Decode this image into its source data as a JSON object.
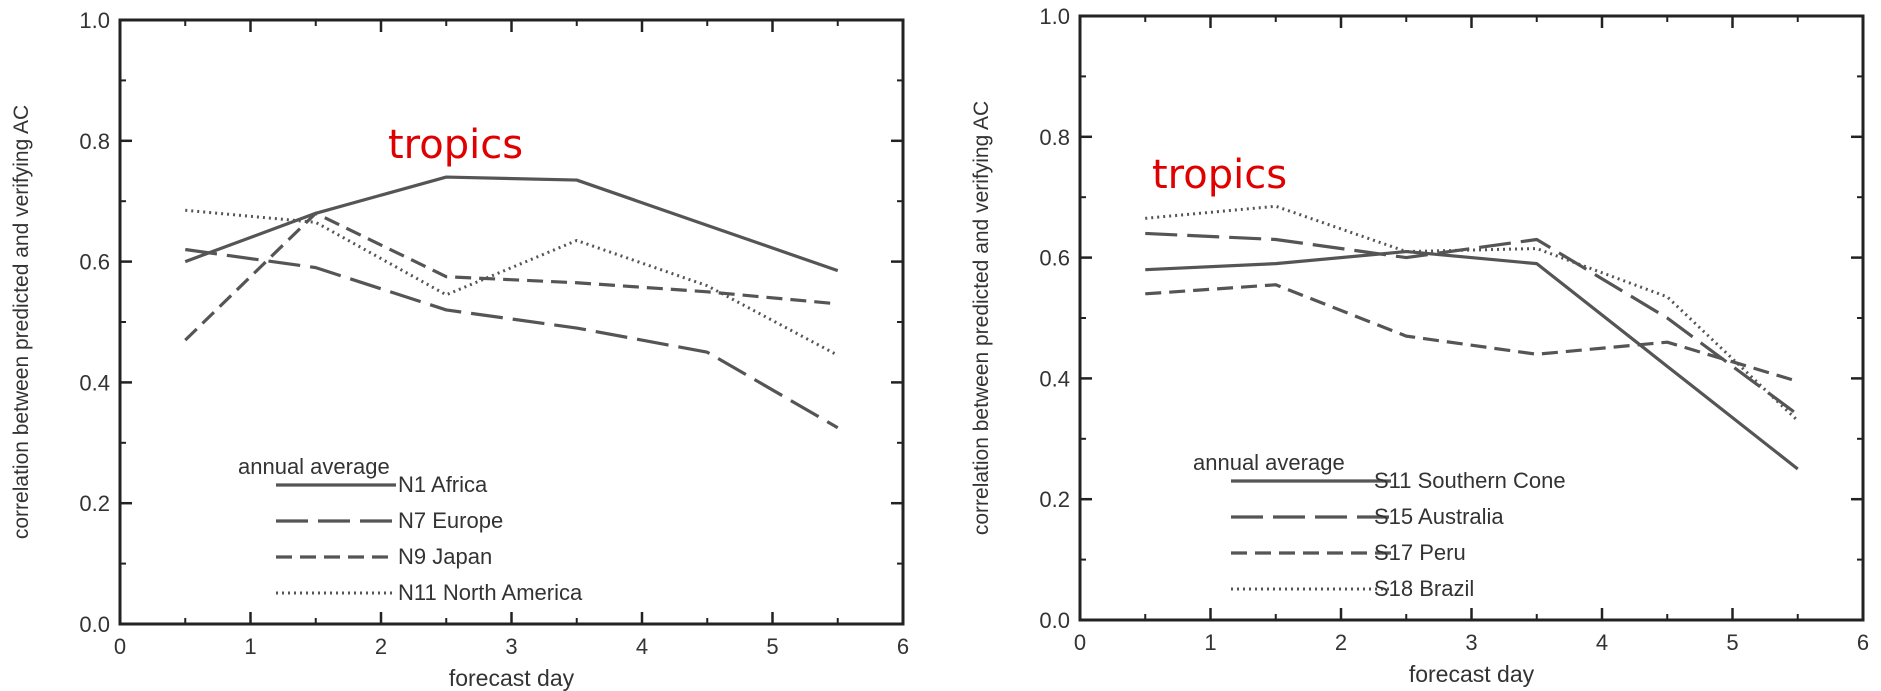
{
  "chart_data": [
    {
      "type": "line",
      "title": "",
      "xlabel": "forecast day",
      "ylabel": "correlation between predicted and verifying AC",
      "xlim": [
        0,
        6
      ],
      "ylim": [
        0.0,
        1.0
      ],
      "x_ticks": [
        "0",
        "1",
        "2",
        "3",
        "4",
        "5",
        "6"
      ],
      "y_ticks": [
        "0.0",
        "0.2",
        "0.4",
        "0.6",
        "0.8",
        "1.0"
      ],
      "annotation": "tropics",
      "annotation_color": "#e00000",
      "legend_title": "annual average",
      "legend_position": "lower-left",
      "series": [
        {
          "name": "N1 Africa",
          "style": "solid",
          "x": [
            0.5,
            1.5,
            2.5,
            3.5,
            4.5,
            5.5
          ],
          "y": [
            0.6,
            0.68,
            0.74,
            0.735,
            0.66,
            0.585
          ]
        },
        {
          "name": "N7 Europe",
          "style": "longdash",
          "x": [
            0.5,
            1.5,
            2.5,
            3.5,
            4.5,
            5.5
          ],
          "y": [
            0.62,
            0.59,
            0.52,
            0.49,
            0.45,
            0.325
          ]
        },
        {
          "name": "N9 Japan",
          "style": "dash",
          "x": [
            0.5,
            1.5,
            2.5,
            3.5,
            4.5,
            5.5
          ],
          "y": [
            0.47,
            0.68,
            0.575,
            0.565,
            0.55,
            0.53
          ]
        },
        {
          "name": "N11 North America",
          "style": "dotted",
          "x": [
            0.5,
            1.5,
            2.5,
            3.5,
            4.5,
            5.5
          ],
          "y": [
            0.685,
            0.665,
            0.545,
            0.635,
            0.56,
            0.445
          ]
        }
      ]
    },
    {
      "type": "line",
      "title": "",
      "xlabel": "forecast day",
      "ylabel": "correlation between predicted and verifying AC",
      "xlim": [
        0,
        6
      ],
      "ylim": [
        0.0,
        1.0
      ],
      "x_ticks": [
        "0",
        "1",
        "2",
        "3",
        "4",
        "5",
        "6"
      ],
      "y_ticks": [
        "0.0",
        "0.2",
        "0.4",
        "0.6",
        "0.8",
        "1.0"
      ],
      "annotation": "tropics",
      "annotation_color": "#e00000",
      "legend_title": "annual average",
      "legend_position": "lower-left",
      "series": [
        {
          "name": "S11 Southern Cone",
          "style": "solid",
          "x": [
            0.5,
            1.5,
            2.5,
            3.5,
            4.5,
            5.5
          ],
          "y": [
            0.58,
            0.59,
            0.61,
            0.59,
            0.42,
            0.25
          ]
        },
        {
          "name": "S15 Australia",
          "style": "longdash",
          "x": [
            0.5,
            1.5,
            2.5,
            3.5,
            4.5,
            5.5
          ],
          "y": [
            0.64,
            0.63,
            0.6,
            0.63,
            0.5,
            0.34
          ]
        },
        {
          "name": "S17 Peru",
          "style": "dash",
          "x": [
            0.5,
            1.5,
            2.5,
            3.5,
            4.5,
            5.5
          ],
          "y": [
            0.54,
            0.555,
            0.47,
            0.44,
            0.46,
            0.395
          ]
        },
        {
          "name": "S18 Brazil",
          "style": "dotted",
          "x": [
            0.5,
            1.5,
            2.5,
            3.5,
            4.5,
            5.5
          ],
          "y": [
            0.665,
            0.685,
            0.61,
            0.615,
            0.535,
            0.33
          ]
        }
      ]
    }
  ]
}
